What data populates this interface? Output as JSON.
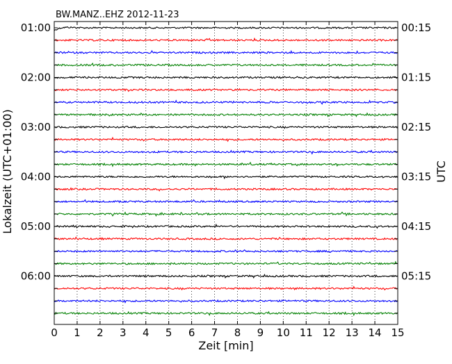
{
  "chart_data": {
    "type": "line",
    "title": "BW.MANZ..EHZ 2012-11-23",
    "xlabel": "Zeit  [min]",
    "ylabel": "Lokalzeit (UTC+01:00)",
    "ylabel_right": "UTC",
    "xlim": [
      0,
      15
    ],
    "x_ticks": [
      "0",
      "1",
      "2",
      "3",
      "4",
      "5",
      "6",
      "7",
      "8",
      "9",
      "10",
      "11",
      "12",
      "13",
      "14",
      "15"
    ],
    "left_ticks": [
      "01:00",
      "02:00",
      "03:00",
      "04:00",
      "05:00",
      "06:00"
    ],
    "right_ticks": [
      "00:15",
      "01:15",
      "02:15",
      "03:15",
      "04:15",
      "05:15"
    ],
    "trace_count": 24,
    "traces_per_hour": 4,
    "minutes_per_trace": 15,
    "trace_colors": [
      "#000000",
      "#ff0000",
      "#0000ff",
      "#008000"
    ],
    "grid": "vertical dotted at each minute",
    "first_trace_start_offset_min": 0.5
  }
}
